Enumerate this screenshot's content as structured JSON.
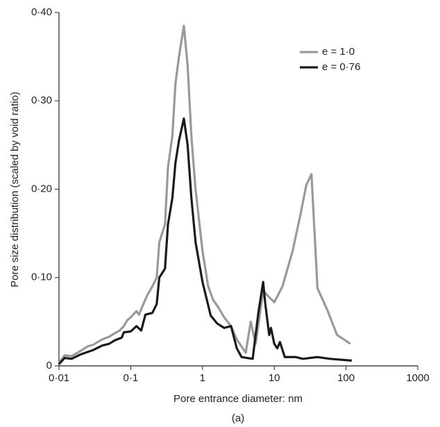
{
  "chart_data": {
    "type": "line",
    "x_label": "Pore entrance diameter: nm",
    "y_label": "Pore size distribution (scaled by void ratio)",
    "caption": "(a)",
    "xscale": "log",
    "xlim": [
      0.01,
      1000
    ],
    "ylim": [
      0,
      0.4
    ],
    "xticks": [
      {
        "value": 0.01,
        "label": "0·01"
      },
      {
        "value": 0.1,
        "label": "0·1"
      },
      1,
      10,
      100,
      1000
    ],
    "yticks": [
      0,
      {
        "value": 0.1,
        "label": "0·10"
      },
      {
        "value": 0.2,
        "label": "0·20"
      },
      {
        "value": 0.3,
        "label": "0·30"
      },
      {
        "value": 0.4,
        "label": "0·40"
      }
    ],
    "legend": "upper right",
    "series": [
      {
        "name": "e = 1·0",
        "color": "#999999",
        "x": [
          0.01,
          0.012,
          0.015,
          0.02,
          0.025,
          0.03,
          0.04,
          0.05,
          0.06,
          0.07,
          0.08,
          0.09,
          0.1,
          0.12,
          0.13,
          0.15,
          0.17,
          0.2,
          0.23,
          0.25,
          0.3,
          0.33,
          0.38,
          0.42,
          0.47,
          0.55,
          0.62,
          0.7,
          0.8,
          1.0,
          1.2,
          1.4,
          1.7,
          2.0,
          2.5,
          3.0,
          4.0,
          4.7,
          5.5,
          7,
          8,
          10,
          13,
          18,
          23,
          28,
          33,
          40,
          55,
          75,
          115
        ],
        "values": [
          0.003,
          0.012,
          0.011,
          0.017,
          0.022,
          0.024,
          0.03,
          0.033,
          0.037,
          0.04,
          0.045,
          0.052,
          0.055,
          0.062,
          0.058,
          0.07,
          0.08,
          0.09,
          0.1,
          0.14,
          0.16,
          0.225,
          0.26,
          0.32,
          0.35,
          0.385,
          0.34,
          0.26,
          0.2,
          0.13,
          0.09,
          0.075,
          0.065,
          0.055,
          0.045,
          0.03,
          0.015,
          0.05,
          0.025,
          0.085,
          0.08,
          0.072,
          0.09,
          0.13,
          0.17,
          0.205,
          0.217,
          0.088,
          0.063,
          0.035,
          0.025
        ]
      },
      {
        "name": "e = 0·76",
        "color": "#1a1a1a",
        "x": [
          0.01,
          0.012,
          0.015,
          0.02,
          0.03,
          0.04,
          0.05,
          0.06,
          0.075,
          0.08,
          0.1,
          0.12,
          0.14,
          0.16,
          0.2,
          0.23,
          0.25,
          0.3,
          0.33,
          0.38,
          0.42,
          0.47,
          0.55,
          0.62,
          0.7,
          0.8,
          1.0,
          1.3,
          1.6,
          2.0,
          2.5,
          3.0,
          3.5,
          5,
          6,
          7,
          7.5,
          8.5,
          9,
          10,
          11,
          12,
          14,
          20,
          25,
          40,
          60,
          120
        ],
        "values": [
          0.002,
          0.009,
          0.008,
          0.013,
          0.018,
          0.023,
          0.025,
          0.029,
          0.032,
          0.038,
          0.039,
          0.045,
          0.04,
          0.058,
          0.06,
          0.07,
          0.1,
          0.11,
          0.16,
          0.19,
          0.23,
          0.255,
          0.28,
          0.25,
          0.19,
          0.14,
          0.095,
          0.057,
          0.048,
          0.043,
          0.045,
          0.02,
          0.01,
          0.008,
          0.06,
          0.095,
          0.07,
          0.035,
          0.043,
          0.025,
          0.02,
          0.027,
          0.01,
          0.01,
          0.008,
          0.01,
          0.008,
          0.006
        ]
      }
    ]
  }
}
